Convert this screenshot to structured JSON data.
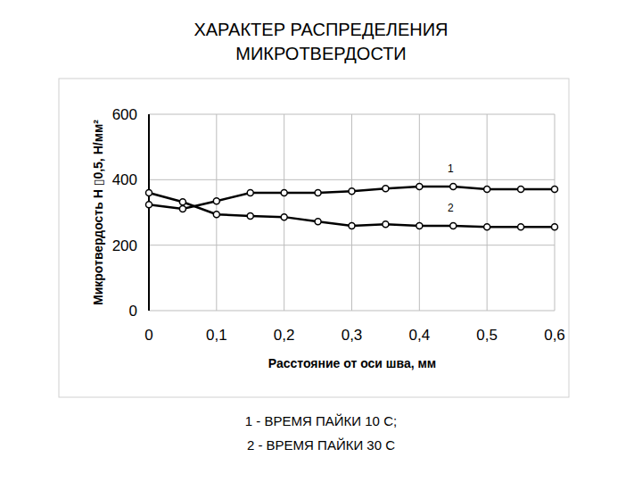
{
  "chart_data": {
    "type": "line",
    "title": "ХАРАКТЕР РАСПРЕДЕЛЕНИЯ\nМИКРОТВЕРДОСТИ",
    "x_label": "Расстояние от оси шва, мм",
    "y_label": "Микротвердость H ▯0,5, Н/мм²",
    "x": [
      0,
      0.05,
      0.1,
      0.15,
      0.2,
      0.25,
      0.3,
      0.35,
      0.4,
      0.45,
      0.5,
      0.55,
      0.6
    ],
    "series": [
      {
        "name": "1",
        "color": "#000000",
        "marker": "circle",
        "line_style": "solid",
        "values": [
          324,
          311,
          335,
          360,
          360,
          360,
          365,
          373,
          379,
          379,
          371,
          371,
          371
        ]
      },
      {
        "name": "2",
        "color": "#000000",
        "marker": "circle",
        "line_style": "solid",
        "values": [
          360,
          332,
          294,
          289,
          286,
          272,
          259,
          264,
          259,
          259,
          256,
          256,
          256
        ]
      }
    ],
    "xlim": [
      0,
      0.6
    ],
    "xticks": [
      0,
      {
        "value": 0.1,
        "label": "0,1"
      },
      {
        "value": 0.2,
        "label": "0,2"
      },
      {
        "value": 0.3,
        "label": "0,3"
      },
      {
        "value": 0.4,
        "label": "0,4"
      },
      {
        "value": 0.5,
        "label": "0,5"
      },
      {
        "value": 0.6,
        "label": "0,6"
      }
    ],
    "ylim": [
      0,
      600
    ],
    "yticks": [
      0,
      200,
      400,
      600
    ],
    "grid": true,
    "captions": [
      "1 - ВРЕМЯ ПАЙКИ 10 С;",
      "2 - ВРЕМЯ ПАЙКИ 30 С"
    ]
  }
}
